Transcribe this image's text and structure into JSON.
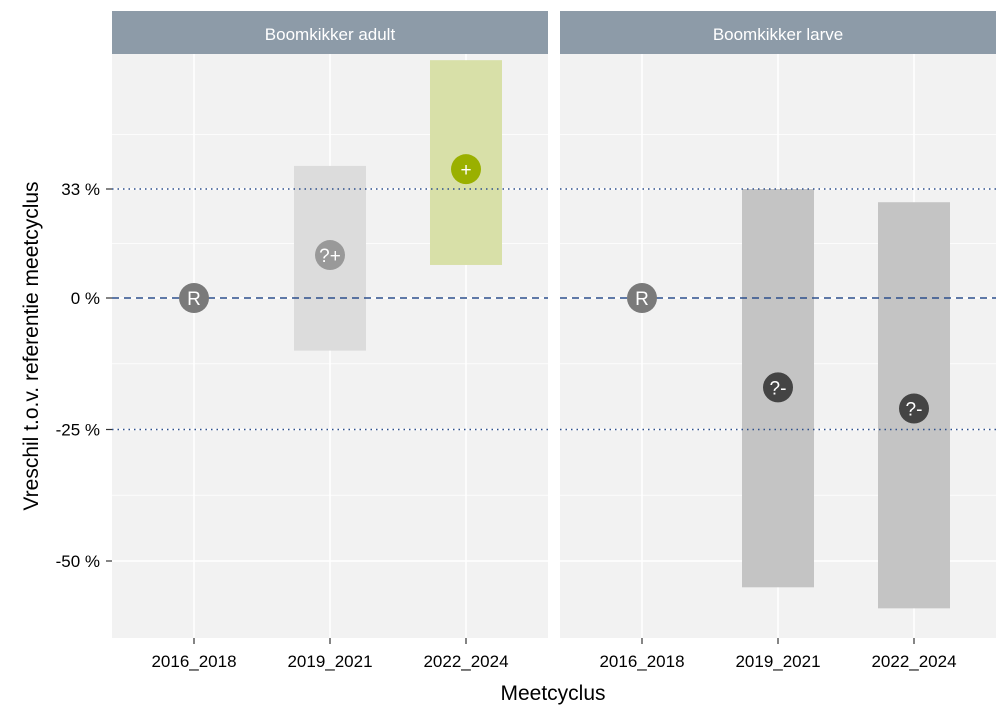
{
  "chart_data": {
    "type": "range",
    "xlabel": "Meetcyclus",
    "ylabel": "Vreschil t.o.v. referentie meetcyclus",
    "categories": [
      "2016_2018",
      "2019_2021",
      "2022_2024"
    ],
    "y_ticks": [
      {
        "value": 33,
        "label": "33 %"
      },
      {
        "value": 0,
        "label": "0 %"
      },
      {
        "value": -25,
        "label": "-25 %"
      },
      {
        "value": -50,
        "label": "-50 %"
      }
    ],
    "reference_lines": [
      {
        "value": 33,
        "style": "dotted"
      },
      {
        "value": 0,
        "style": "dashed"
      },
      {
        "value": -25,
        "style": "dotted"
      }
    ],
    "colors": {
      "strip_bg": "#8d9ba8",
      "panel_bg": "#f2f2f2",
      "reference_marker": "#7a7a7a",
      "uncertain_pos_marker": "#999999",
      "uncertain_pos_band": "#dcdcdc",
      "increase_marker": "#9ab000",
      "increase_band": "#d8e0a8",
      "uncertain_neg_marker": "#444444",
      "uncertain_neg_band": "#c4c4c4",
      "ref_line": "#2c4f8c"
    },
    "panels": [
      {
        "title": "Boomkikker adult",
        "points": [
          {
            "category": "2016_2018",
            "estimate": 0,
            "lower": null,
            "upper": null,
            "label": "R",
            "kind": "reference"
          },
          {
            "category": "2019_2021",
            "estimate": 13,
            "lower": -10,
            "upper": 40,
            "label": "?+",
            "kind": "uncertain_pos"
          },
          {
            "category": "2022_2024",
            "estimate": 39,
            "lower": 10,
            "upper": 72,
            "label": "+",
            "kind": "increase"
          }
        ]
      },
      {
        "title": "Boomkikker larve",
        "points": [
          {
            "category": "2016_2018",
            "estimate": 0,
            "lower": null,
            "upper": null,
            "label": "R",
            "kind": "reference"
          },
          {
            "category": "2019_2021",
            "estimate": -17,
            "lower": -55,
            "upper": 33,
            "label": "?-",
            "kind": "uncertain_neg"
          },
          {
            "category": "2022_2024",
            "estimate": -21,
            "lower": -59,
            "upper": 29,
            "label": "?-",
            "kind": "uncertain_neg"
          }
        ]
      }
    ]
  }
}
